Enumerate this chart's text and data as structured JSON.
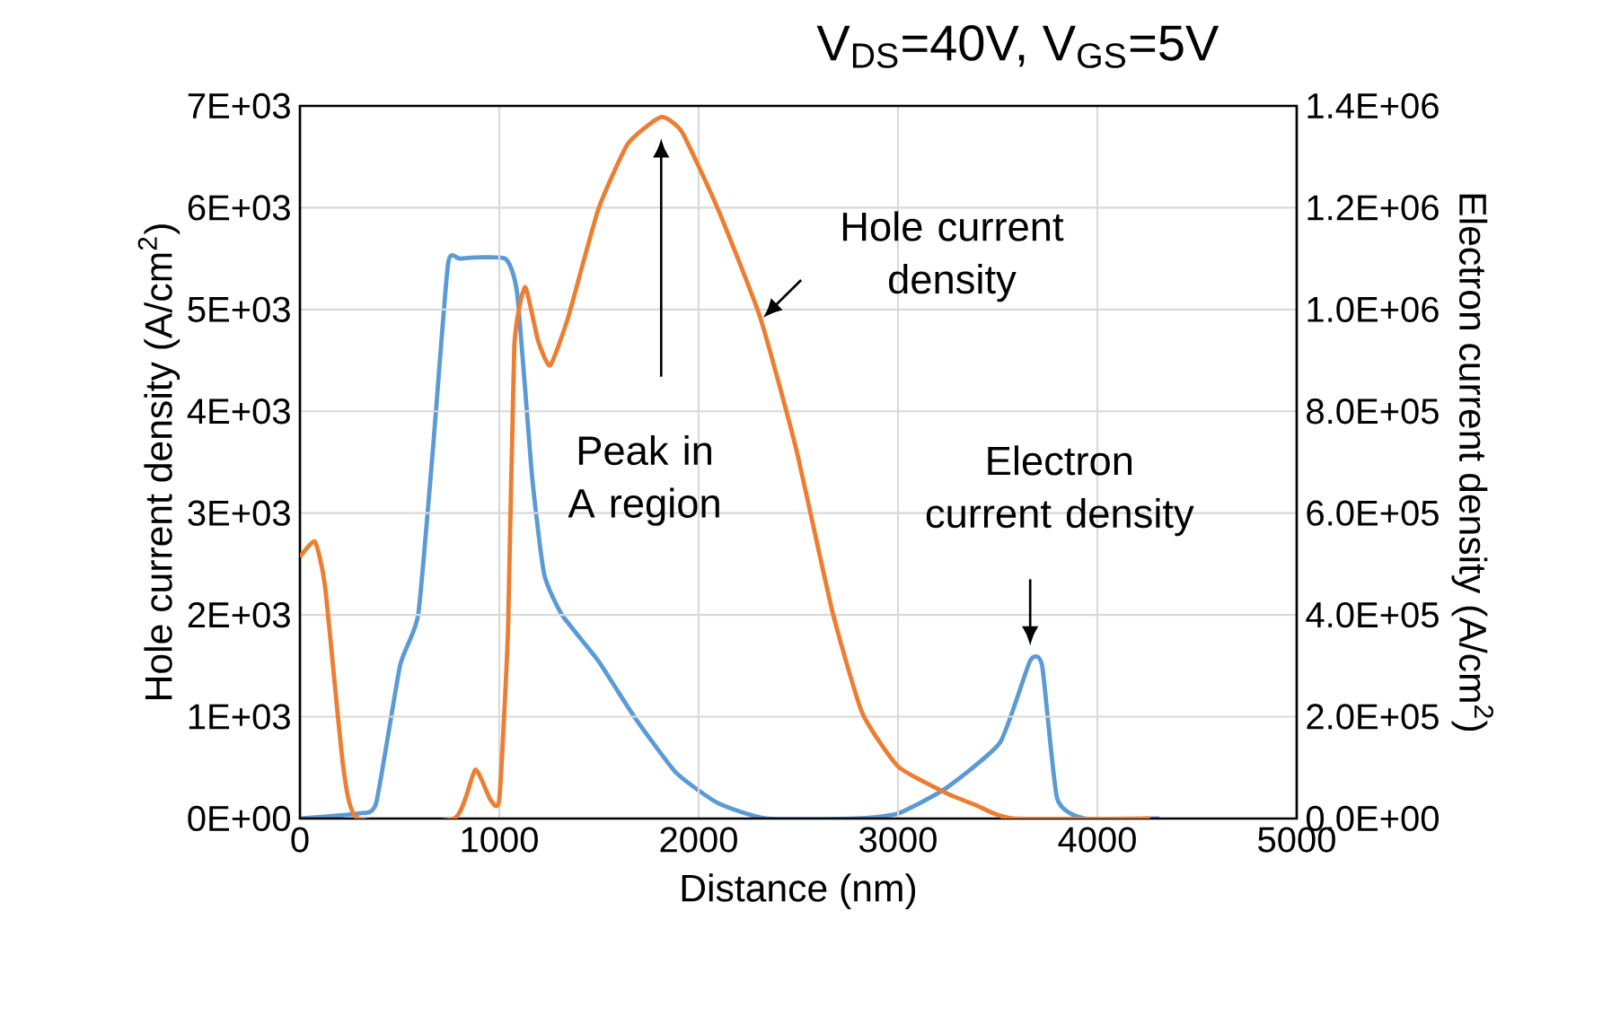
{
  "chart_data": {
    "type": "line",
    "title": "V$_{DS}$=40V, V$_{GS}$=5V",
    "xlabel": "Distance (nm)",
    "ylabel": "Hole current density (A/cm$^{2}$)",
    "y2label": "Electron current density (A/cm$^{2}$)",
    "xlim": [
      0,
      5000
    ],
    "xticks": [
      0,
      1000,
      2000,
      3000,
      4000,
      5000
    ],
    "ylim": [
      0,
      7000
    ],
    "yticks": [
      {
        "value": 0,
        "label": "0E+00"
      },
      {
        "value": 1000,
        "label": "1E+03"
      },
      {
        "value": 2000,
        "label": "2E+03"
      },
      {
        "value": 3000,
        "label": "3E+03"
      },
      {
        "value": 4000,
        "label": "4E+03"
      },
      {
        "value": 5000,
        "label": "5E+03"
      },
      {
        "value": 6000,
        "label": "6E+03"
      },
      {
        "value": 7000,
        "label": "7E+03"
      }
    ],
    "y2lim": [
      0,
      1400000
    ],
    "y2ticks": [
      {
        "value": 0,
        "label": "0.0E+00"
      },
      {
        "value": 200000,
        "label": "2.0E+05"
      },
      {
        "value": 400000,
        "label": "4.0E+05"
      },
      {
        "value": 600000,
        "label": "6.0E+05"
      },
      {
        "value": 800000,
        "label": "8.0E+05"
      },
      {
        "value": 1000000,
        "label": "1.0E+06"
      },
      {
        "value": 1200000,
        "label": "1.2E+06"
      },
      {
        "value": 1400000,
        "label": "1.4E+06"
      }
    ],
    "grid": true,
    "marker": "none",
    "line_style": "solid",
    "series": [
      {
        "color": "#ed7d31",
        "x": [
          0,
          75,
          126,
          217,
          292,
          774,
          879,
          954,
          1000,
          1044,
          1075,
          1129,
          1195,
          1255,
          1345,
          1496,
          1646,
          1812,
          1917,
          2098,
          2309,
          2489,
          2670,
          2820,
          3001,
          3242,
          3392,
          3573,
          4265
        ],
        "values": [
          2570,
          2720,
          2280,
          510,
          0,
          0,
          480,
          190,
          190,
          1860,
          4630,
          5220,
          4690,
          4450,
          4920,
          5980,
          6630,
          6890,
          6740,
          5980,
          4920,
          3630,
          2040,
          1040,
          510,
          250,
          130,
          0,
          0
        ]
      },
      {
        "color": "#5b9bd5",
        "axis": "y2",
        "x": [
          0,
          292,
          382,
          502,
          593,
          668,
          743,
          804,
          1029,
          1090,
          1165,
          1225,
          1315,
          1496,
          1677,
          1887,
          2098,
          2339,
          2790,
          3001,
          3242,
          3513,
          3663,
          3723,
          3798,
          3934,
          4310
        ],
        "values": [
          0,
          10000,
          30000,
          300000,
          400000,
          730000,
          1090000,
          1100000,
          1100000,
          1030000,
          670000,
          480000,
          400000,
          310000,
          200000,
          90000,
          30000,
          0,
          0,
          10000,
          60000,
          150000,
          310000,
          300000,
          40000,
          0,
          0
        ]
      }
    ],
    "annotations": [
      "Peak in A region",
      "Hole current density",
      "Electron current density"
    ]
  }
}
